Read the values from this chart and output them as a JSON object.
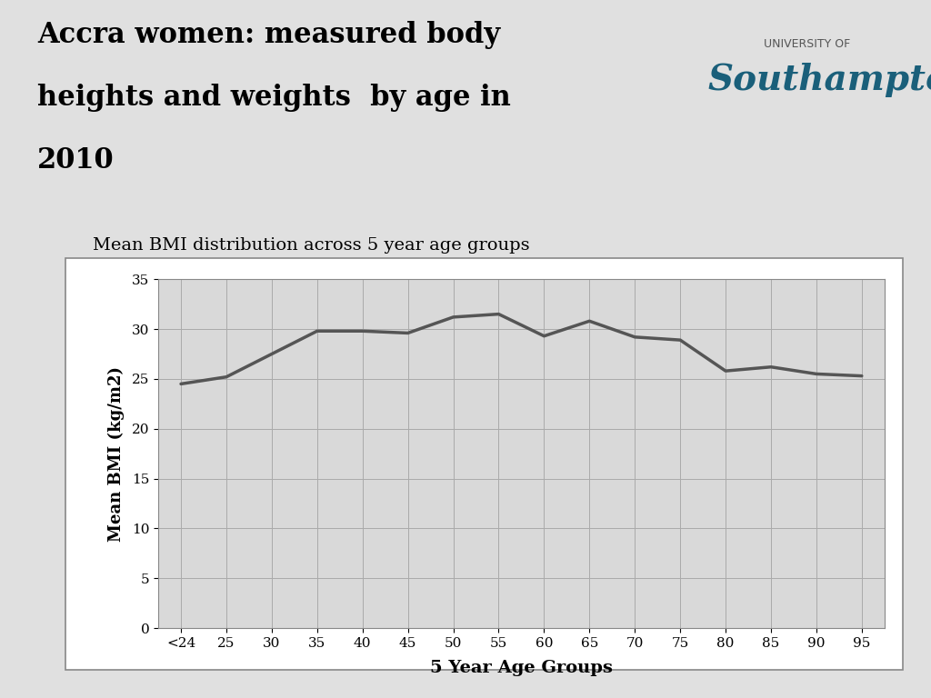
{
  "title_line1": "Accra women: measured body",
  "title_line2": "heights and weights  by age in",
  "title_line3": "2010",
  "subtitle": "Mean BMI distribution across 5 year age groups",
  "xlabel": "5 Year Age Groups",
  "ylabel": "Mean BMI (kg/m2)",
  "x_labels": [
    "<24",
    "25",
    "30",
    "35",
    "40",
    "45",
    "50",
    "55",
    "60",
    "65",
    "70",
    "75",
    "80",
    "85",
    "90",
    "95"
  ],
  "y_values": [
    24.5,
    25.2,
    27.5,
    29.8,
    29.8,
    29.6,
    31.2,
    31.5,
    29.3,
    30.8,
    29.2,
    28.9,
    25.8,
    26.2,
    25.5,
    25.3
  ],
  "ylim": [
    0,
    35
  ],
  "yticks": [
    0,
    5,
    10,
    15,
    20,
    25,
    30,
    35
  ],
  "line_color": "#555555",
  "line_width": 2.5,
  "background_color": "#d8d8d8",
  "plot_bg_color": "#d9d9d9",
  "chart_bg_color": "#ffffff",
  "grid_color": "#aaaaaa",
  "title_color": "#000000",
  "title_fontsize": 22,
  "subtitle_fontsize": 14,
  "axis_label_fontsize": 13,
  "tick_fontsize": 11,
  "soton_main_color": "#1a5f7a",
  "soton_small_color": "#555555",
  "soton_main_fontsize": 28,
  "soton_small_fontsize": 9
}
